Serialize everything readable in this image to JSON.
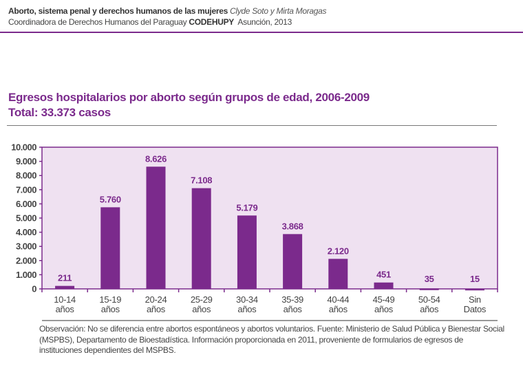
{
  "header": {
    "book_title": "Aborto, sistema penal y derechos humanos de las mujeres",
    "authors": "Clyde  Soto y Mirta Moragas",
    "publisher": "Coordinadora de Derechos Humanos del Paraguay",
    "publisher_acronym": "CODEHUPY",
    "place_year": "Asunción, 2013"
  },
  "chart_data": {
    "type": "bar",
    "title": "Egresos hospitalarios por aborto según grupos de edad, 2006-2009",
    "subtitle": "Total: 33.373 casos",
    "categories": [
      [
        "10-14",
        "años"
      ],
      [
        "15-19",
        "años"
      ],
      [
        "20-24",
        "años"
      ],
      [
        "25-29",
        "años"
      ],
      [
        "30-34",
        "años"
      ],
      [
        "35-39",
        "años"
      ],
      [
        "40-44",
        "años"
      ],
      [
        "45-49",
        "años"
      ],
      [
        "50-54",
        "años"
      ],
      [
        "Sin",
        "Datos"
      ]
    ],
    "values": [
      211,
      5760,
      8626,
      7108,
      5179,
      3868,
      2120,
      451,
      35,
      15
    ],
    "value_labels": [
      "211",
      "5.760",
      "8.626",
      "7.108",
      "5.179",
      "3.868",
      "2.120",
      "451",
      "35",
      "15"
    ],
    "ylim": [
      0,
      10000
    ],
    "yticks": [
      0,
      1000,
      2000,
      3000,
      4000,
      5000,
      6000,
      7000,
      8000,
      9000,
      10000
    ],
    "ytick_labels": [
      "0",
      "1.000",
      "2.000",
      "3.000",
      "4.000",
      "5.000",
      "6.000",
      "7.000",
      "8.000",
      "9.000",
      "10.000"
    ],
    "xlabel": "",
    "ylabel": "",
    "grid": false,
    "colors": {
      "bar": "#7b2a8c",
      "plot_bg": "#efe1f1",
      "label": "#7b2a8c"
    }
  },
  "note": "Observación: No se diferencia entre abortos espontáneos y abortos voluntarios. Fuente: Ministerio de Salud Pública y Bienestar Social (MSPBS), Departamento de Bioestadística. Información proporcionada en 2011, proveniente de formularios de egresos de instituciones dependientes del MSPBS."
}
